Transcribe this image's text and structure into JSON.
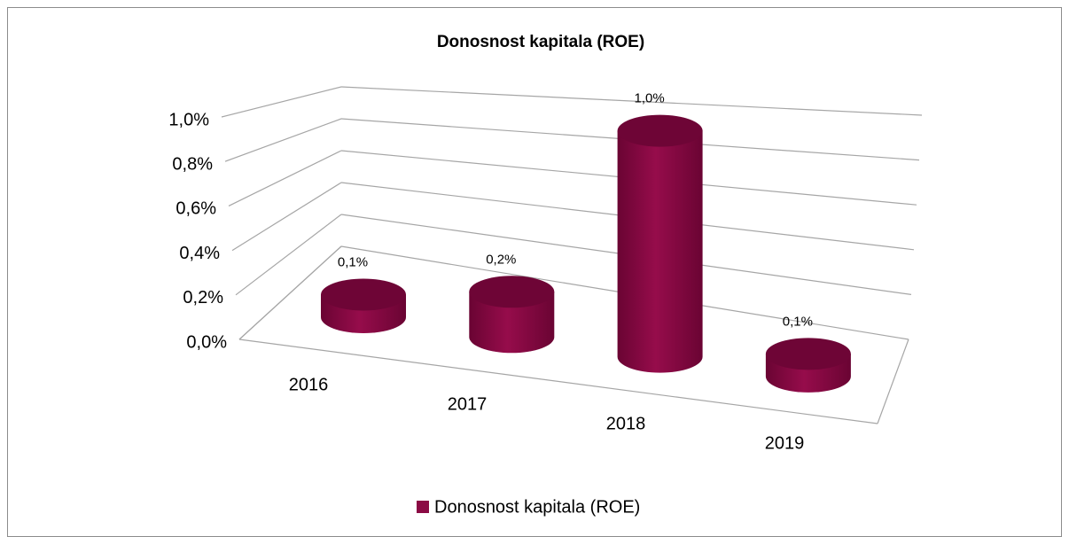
{
  "chart_data": {
    "type": "bar3d",
    "title": "Donosnost kapitala (ROE)",
    "categories": [
      "2016",
      "2017",
      "2018",
      "2019"
    ],
    "series": [
      {
        "name": "Donosnost kapitala (ROE)",
        "color": "#8b0a44",
        "values": [
          0.1,
          0.2,
          1.0,
          0.1
        ],
        "value_labels": [
          "0,1%",
          "0,2%",
          "1,0%",
          "0,1%"
        ]
      }
    ],
    "ylim": [
      0,
      1.0
    ],
    "yticks": [
      {
        "value": 0,
        "label": "0,0%"
      },
      {
        "value": 0.2,
        "label": "0,2%"
      },
      {
        "value": 0.4,
        "label": "0,4%"
      },
      {
        "value": 0.6,
        "label": "0,6%"
      },
      {
        "value": 0.8,
        "label": "0,8%"
      },
      {
        "value": 1.0,
        "label": "1,0%"
      }
    ],
    "grid": true,
    "legend": "bottom"
  }
}
